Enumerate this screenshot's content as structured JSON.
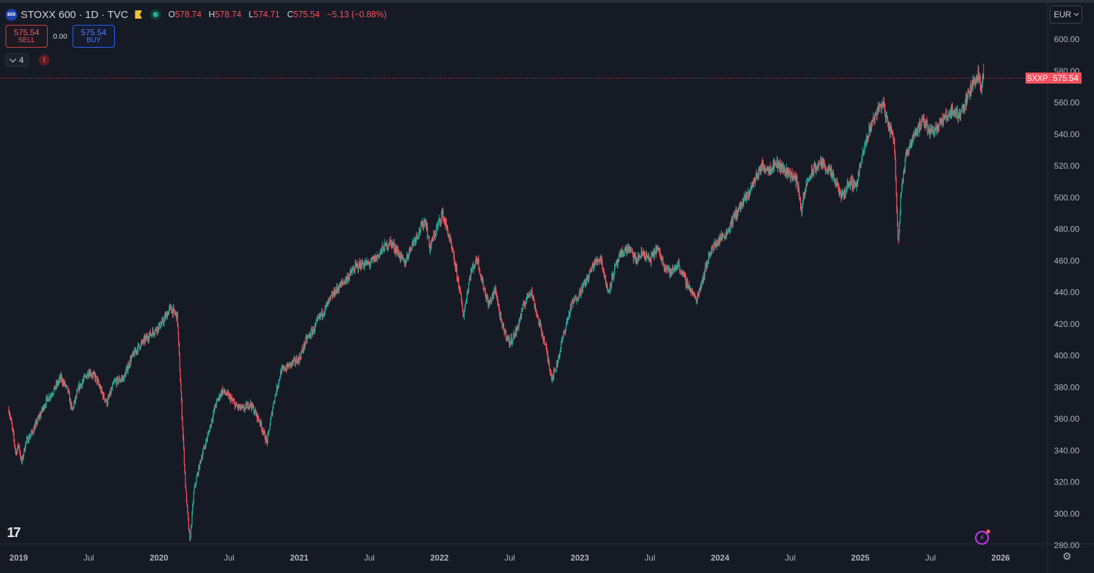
{
  "symbol": {
    "logo_text": "600",
    "title": "STOXX 600 · 1D · TVC",
    "open_key": "O",
    "open": "578.74",
    "high_key": "H",
    "high": "578.74",
    "low_key": "L",
    "low": "574.71",
    "close_key": "C",
    "close": "575.54",
    "change": "−5.13 (−0.88%)"
  },
  "trade": {
    "sell_price": "575.54",
    "sell_label": "SELL",
    "spread": "0.00",
    "buy_price": "575.54",
    "buy_label": "BUY"
  },
  "indicators": {
    "count": "4",
    "warning": "!"
  },
  "currency": "EUR",
  "price_label": {
    "ticker": "SXXP",
    "value": "575.54"
  },
  "footer": {
    "logo": "17"
  },
  "colors": {
    "bg": "#161a25",
    "up": "#22ab94",
    "down": "#f7525f",
    "axis_text": "#b2b5be"
  },
  "chart_data": {
    "type": "candlestick",
    "title": "STOXX 600 · 1D · TVC",
    "y_ticks": [
      "600.00",
      "580.00",
      "560.00",
      "540.00",
      "520.00",
      "500.00",
      "480.00",
      "460.00",
      "440.00",
      "420.00",
      "400.00",
      "380.00",
      "360.00",
      "340.00",
      "320.00",
      "300.00",
      "280.00"
    ],
    "ylim": [
      280,
      600
    ],
    "x_ticks": [
      {
        "t": 2019.0,
        "label": "2019"
      },
      {
        "t": 2019.5,
        "label": "Jul"
      },
      {
        "t": 2020.0,
        "label": "2020"
      },
      {
        "t": 2020.5,
        "label": "Jul"
      },
      {
        "t": 2021.0,
        "label": "2021"
      },
      {
        "t": 2021.5,
        "label": "Jul"
      },
      {
        "t": 2022.0,
        "label": "2022"
      },
      {
        "t": 2022.5,
        "label": "Jul"
      },
      {
        "t": 2023.0,
        "label": "2023"
      },
      {
        "t": 2023.5,
        "label": "Jul"
      },
      {
        "t": 2024.0,
        "label": "2024"
      },
      {
        "t": 2024.5,
        "label": "Jul"
      },
      {
        "t": 2025.0,
        "label": "2025"
      },
      {
        "t": 2025.5,
        "label": "Jul"
      },
      {
        "t": 2026.0,
        "label": "2026"
      }
    ],
    "last_price": 575.54,
    "series": [
      {
        "name": "STOXX 600",
        "points": [
          [
            2018.93,
            366
          ],
          [
            2018.95,
            356
          ],
          [
            2018.98,
            338
          ],
          [
            2019.0,
            344
          ],
          [
            2019.02,
            332
          ],
          [
            2019.05,
            345
          ],
          [
            2019.1,
            352
          ],
          [
            2019.15,
            362
          ],
          [
            2019.2,
            372
          ],
          [
            2019.25,
            378
          ],
          [
            2019.3,
            386
          ],
          [
            2019.35,
            378
          ],
          [
            2019.38,
            365
          ],
          [
            2019.43,
            380
          ],
          [
            2019.5,
            390
          ],
          [
            2019.55,
            386
          ],
          [
            2019.6,
            375
          ],
          [
            2019.63,
            370
          ],
          [
            2019.68,
            383
          ],
          [
            2019.75,
            386
          ],
          [
            2019.8,
            398
          ],
          [
            2019.85,
            405
          ],
          [
            2019.92,
            412
          ],
          [
            2019.97,
            416
          ],
          [
            2020.02,
            420
          ],
          [
            2020.08,
            430
          ],
          [
            2020.13,
            425
          ],
          [
            2020.16,
            370
          ],
          [
            2020.19,
            315
          ],
          [
            2020.22,
            282
          ],
          [
            2020.25,
            315
          ],
          [
            2020.3,
            335
          ],
          [
            2020.35,
            350
          ],
          [
            2020.4,
            368
          ],
          [
            2020.45,
            378
          ],
          [
            2020.5,
            374
          ],
          [
            2020.55,
            368
          ],
          [
            2020.6,
            366
          ],
          [
            2020.65,
            370
          ],
          [
            2020.72,
            358
          ],
          [
            2020.77,
            345
          ],
          [
            2020.82,
            372
          ],
          [
            2020.87,
            390
          ],
          [
            2020.93,
            394
          ],
          [
            2021.0,
            398
          ],
          [
            2021.05,
            410
          ],
          [
            2021.1,
            416
          ],
          [
            2021.15,
            425
          ],
          [
            2021.2,
            432
          ],
          [
            2021.25,
            440
          ],
          [
            2021.3,
            445
          ],
          [
            2021.35,
            450
          ],
          [
            2021.4,
            456
          ],
          [
            2021.45,
            458
          ],
          [
            2021.5,
            458
          ],
          [
            2021.55,
            462
          ],
          [
            2021.6,
            468
          ],
          [
            2021.65,
            472
          ],
          [
            2021.7,
            466
          ],
          [
            2021.75,
            458
          ],
          [
            2021.8,
            470
          ],
          [
            2021.85,
            478
          ],
          [
            2021.9,
            486
          ],
          [
            2021.93,
            468
          ],
          [
            2021.97,
            478
          ],
          [
            2022.02,
            490
          ],
          [
            2022.06,
            478
          ],
          [
            2022.1,
            462
          ],
          [
            2022.14,
            444
          ],
          [
            2022.17,
            425
          ],
          [
            2022.22,
            452
          ],
          [
            2022.27,
            462
          ],
          [
            2022.3,
            448
          ],
          [
            2022.35,
            432
          ],
          [
            2022.4,
            442
          ],
          [
            2022.44,
            420
          ],
          [
            2022.5,
            408
          ],
          [
            2022.55,
            416
          ],
          [
            2022.6,
            432
          ],
          [
            2022.65,
            442
          ],
          [
            2022.7,
            424
          ],
          [
            2022.75,
            408
          ],
          [
            2022.8,
            386
          ],
          [
            2022.83,
            392
          ],
          [
            2022.88,
            412
          ],
          [
            2022.94,
            432
          ],
          [
            2023.0,
            440
          ],
          [
            2023.05,
            448
          ],
          [
            2023.1,
            458
          ],
          [
            2023.15,
            462
          ],
          [
            2023.2,
            440
          ],
          [
            2023.25,
            455
          ],
          [
            2023.3,
            465
          ],
          [
            2023.35,
            468
          ],
          [
            2023.4,
            460
          ],
          [
            2023.45,
            465
          ],
          [
            2023.5,
            460
          ],
          [
            2023.55,
            468
          ],
          [
            2023.6,
            458
          ],
          [
            2023.65,
            452
          ],
          [
            2023.7,
            458
          ],
          [
            2023.75,
            448
          ],
          [
            2023.8,
            440
          ],
          [
            2023.83,
            435
          ],
          [
            2023.88,
            450
          ],
          [
            2023.93,
            466
          ],
          [
            2024.0,
            474
          ],
          [
            2024.05,
            478
          ],
          [
            2024.1,
            488
          ],
          [
            2024.15,
            495
          ],
          [
            2024.2,
            502
          ],
          [
            2024.25,
            512
          ],
          [
            2024.3,
            520
          ],
          [
            2024.35,
            518
          ],
          [
            2024.4,
            522
          ],
          [
            2024.45,
            518
          ],
          [
            2024.5,
            515
          ],
          [
            2024.55,
            510
          ],
          [
            2024.58,
            492
          ],
          [
            2024.62,
            510
          ],
          [
            2024.67,
            518
          ],
          [
            2024.72,
            522
          ],
          [
            2024.77,
            518
          ],
          [
            2024.82,
            510
          ],
          [
            2024.87,
            500
          ],
          [
            2024.92,
            510
          ],
          [
            2024.97,
            508
          ],
          [
            2025.02,
            528
          ],
          [
            2025.07,
            545
          ],
          [
            2025.12,
            555
          ],
          [
            2025.16,
            560
          ],
          [
            2025.2,
            545
          ],
          [
            2025.24,
            538
          ],
          [
            2025.27,
            470
          ],
          [
            2025.29,
            505
          ],
          [
            2025.33,
            528
          ],
          [
            2025.38,
            540
          ],
          [
            2025.45,
            548
          ],
          [
            2025.5,
            542
          ],
          [
            2025.55,
            545
          ],
          [
            2025.6,
            550
          ],
          [
            2025.65,
            555
          ],
          [
            2025.7,
            552
          ],
          [
            2025.75,
            560
          ],
          [
            2025.8,
            572
          ],
          [
            2025.84,
            578
          ],
          [
            2025.86,
            570
          ],
          [
            2025.88,
            575.54
          ]
        ]
      }
    ]
  }
}
